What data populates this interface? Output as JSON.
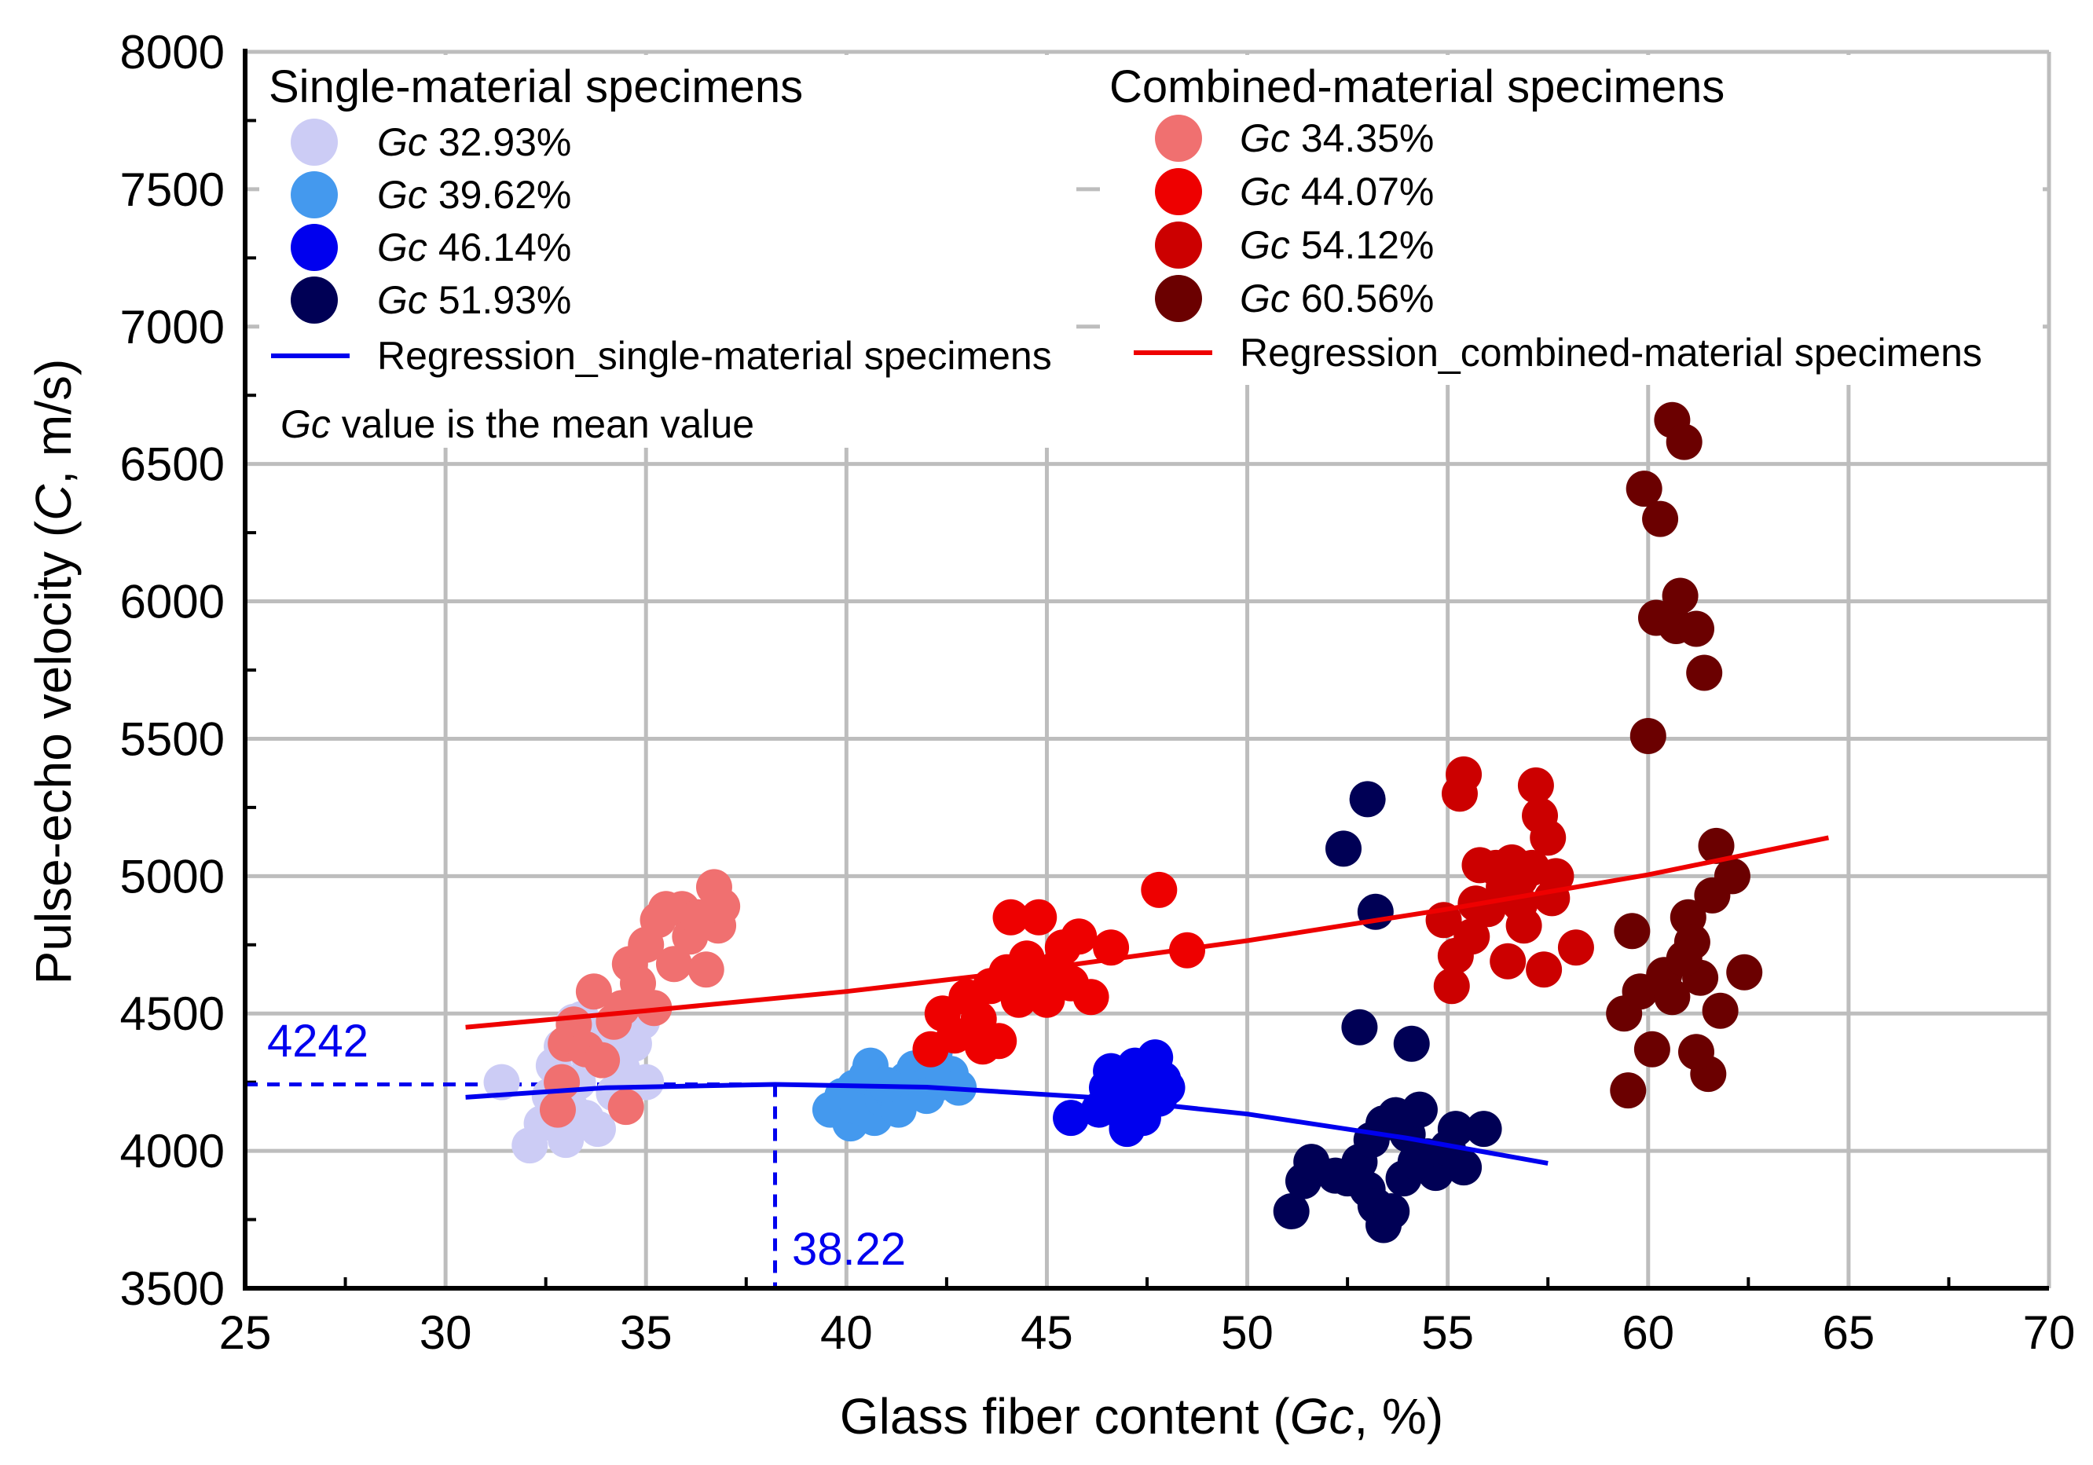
{
  "chart_data": {
    "type": "scatter",
    "title": "",
    "xlabel_prefix": "Glass fiber content (",
    "xlabel_var": "Gc",
    "xlabel_suffix": ", %)",
    "ylabel_prefix": "Pulse-echo velocity (",
    "ylabel_var": "C",
    "ylabel_suffix": ", m/s)",
    "xlim": [
      25,
      70
    ],
    "ylim": [
      3500,
      8000
    ],
    "xticks": [
      25,
      30,
      35,
      40,
      45,
      50,
      55,
      60,
      65,
      70
    ],
    "yticks": [
      3500,
      4000,
      4500,
      5000,
      5500,
      6000,
      6500,
      7000,
      7500,
      8000
    ],
    "x_minor_step": 2.5,
    "y_minor_step": 250,
    "grid": true,
    "legend": {
      "single_heading": "Single-material specimens",
      "combined_heading": "Combined-material specimens",
      "var_label": "Gc",
      "single_regression_label": "Regression_single-material specimens",
      "combined_regression_label": "Regression_combined-material specimens",
      "note_var": "Gc",
      "note_text": " value is the mean value",
      "placement": "top"
    },
    "series": [
      {
        "name": "Gc 32.93%",
        "group": "single",
        "mean_label": "32.93%",
        "color": "#ccccf5",
        "points": [
          [
            31.4,
            4250
          ],
          [
            32.1,
            4020
          ],
          [
            32.4,
            4100
          ],
          [
            32.6,
            4200
          ],
          [
            32.7,
            4310
          ],
          [
            32.9,
            4380
          ],
          [
            33.0,
            4040
          ],
          [
            33.1,
            4160
          ],
          [
            33.2,
            4470
          ],
          [
            33.3,
            4250
          ],
          [
            33.5,
            4120
          ],
          [
            33.6,
            4330
          ],
          [
            33.8,
            4080
          ],
          [
            34.0,
            4420
          ],
          [
            34.2,
            4210
          ],
          [
            34.4,
            4300
          ],
          [
            34.7,
            4390
          ],
          [
            35.0,
            4250
          ],
          [
            34.9,
            4470
          ],
          [
            33.4,
            4480
          ]
        ]
      },
      {
        "name": "Gc 39.62%",
        "group": "single",
        "mean_label": "39.62%",
        "color": "#4499ee",
        "points": [
          [
            39.6,
            4150
          ],
          [
            39.9,
            4200
          ],
          [
            40.1,
            4100
          ],
          [
            40.2,
            4230
          ],
          [
            40.3,
            4160
          ],
          [
            40.5,
            4270
          ],
          [
            40.6,
            4310
          ],
          [
            40.7,
            4120
          ],
          [
            40.9,
            4190
          ],
          [
            41.1,
            4220
          ],
          [
            41.3,
            4150
          ],
          [
            41.5,
            4260
          ],
          [
            41.7,
            4300
          ],
          [
            41.9,
            4230
          ],
          [
            42.0,
            4200
          ],
          [
            42.2,
            4360
          ],
          [
            42.4,
            4250
          ],
          [
            42.6,
            4280
          ],
          [
            42.8,
            4230
          ],
          [
            41.0,
            4240
          ]
        ]
      },
      {
        "name": "Gc 46.14%",
        "group": "single",
        "mean_label": "46.14%",
        "color": "#0000ee",
        "points": [
          [
            45.6,
            4120
          ],
          [
            46.3,
            4150
          ],
          [
            46.5,
            4230
          ],
          [
            46.6,
            4290
          ],
          [
            46.8,
            4200
          ],
          [
            46.9,
            4260
          ],
          [
            47.0,
            4100
          ],
          [
            47.1,
            4180
          ],
          [
            47.2,
            4310
          ],
          [
            47.3,
            4230
          ],
          [
            47.4,
            4150
          ],
          [
            47.5,
            4280
          ],
          [
            47.6,
            4210
          ],
          [
            47.7,
            4340
          ],
          [
            47.8,
            4190
          ],
          [
            47.9,
            4260
          ],
          [
            48.0,
            4230
          ],
          [
            47.0,
            4080
          ],
          [
            47.4,
            4120
          ]
        ]
      },
      {
        "name": "Gc 51.93%",
        "group": "single",
        "mean_label": "51.93%",
        "color": "#000055",
        "points": [
          [
            51.1,
            3780
          ],
          [
            51.4,
            3890
          ],
          [
            51.6,
            3960
          ],
          [
            52.4,
            5100
          ],
          [
            53.0,
            5280
          ],
          [
            53.2,
            4870
          ],
          [
            52.8,
            4450
          ],
          [
            54.1,
            4390
          ],
          [
            52.2,
            3910
          ],
          [
            52.5,
            3900
          ],
          [
            52.8,
            3960
          ],
          [
            53.0,
            3860
          ],
          [
            53.2,
            3800
          ],
          [
            53.4,
            3730
          ],
          [
            53.6,
            3780
          ],
          [
            53.1,
            4040
          ],
          [
            53.4,
            4100
          ],
          [
            53.7,
            4130
          ],
          [
            54.0,
            4060
          ],
          [
            54.3,
            4150
          ],
          [
            54.5,
            3980
          ],
          [
            54.7,
            3920
          ],
          [
            55.0,
            4010
          ],
          [
            55.2,
            4080
          ],
          [
            55.4,
            3940
          ],
          [
            55.9,
            4080
          ],
          [
            53.9,
            3900
          ],
          [
            54.2,
            3960
          ]
        ]
      },
      {
        "name": "Gc 34.35%",
        "group": "combined",
        "mean_label": "34.35%",
        "color": "#f07070",
        "points": [
          [
            32.8,
            4150
          ],
          [
            32.9,
            4250
          ],
          [
            33.0,
            4390
          ],
          [
            33.2,
            4460
          ],
          [
            33.5,
            4370
          ],
          [
            33.7,
            4580
          ],
          [
            33.9,
            4330
          ],
          [
            34.2,
            4470
          ],
          [
            34.4,
            4520
          ],
          [
            34.5,
            4160
          ],
          [
            34.6,
            4680
          ],
          [
            34.8,
            4610
          ],
          [
            35.0,
            4750
          ],
          [
            35.2,
            4520
          ],
          [
            35.3,
            4840
          ],
          [
            35.5,
            4880
          ],
          [
            35.7,
            4680
          ],
          [
            35.9,
            4880
          ],
          [
            36.1,
            4780
          ],
          [
            36.3,
            4850
          ],
          [
            36.5,
            4660
          ],
          [
            36.7,
            4960
          ],
          [
            36.8,
            4820
          ],
          [
            36.9,
            4890
          ]
        ]
      },
      {
        "name": "Gc 44.07%",
        "group": "combined",
        "mean_label": "44.07%",
        "color": "#ee0000",
        "points": [
          [
            42.1,
            4370
          ],
          [
            42.4,
            4500
          ],
          [
            42.7,
            4420
          ],
          [
            43.0,
            4560
          ],
          [
            43.3,
            4480
          ],
          [
            43.4,
            4380
          ],
          [
            43.6,
            4600
          ],
          [
            43.8,
            4400
          ],
          [
            44.0,
            4650
          ],
          [
            44.1,
            4850
          ],
          [
            44.3,
            4550
          ],
          [
            44.5,
            4700
          ],
          [
            44.6,
            4610
          ],
          [
            44.8,
            4850
          ],
          [
            45.0,
            4550
          ],
          [
            45.2,
            4660
          ],
          [
            45.4,
            4740
          ],
          [
            45.6,
            4610
          ],
          [
            45.8,
            4780
          ],
          [
            46.1,
            4560
          ],
          [
            46.6,
            4740
          ],
          [
            47.8,
            4950
          ],
          [
            48.5,
            4730
          ],
          [
            45.0,
            4620
          ]
        ]
      },
      {
        "name": "Gc 54.12%",
        "group": "combined",
        "mean_label": "54.12%",
        "color": "#cc0000",
        "points": [
          [
            54.9,
            4840
          ],
          [
            55.1,
            4600
          ],
          [
            55.2,
            4710
          ],
          [
            55.3,
            5300
          ],
          [
            55.4,
            5370
          ],
          [
            55.6,
            4780
          ],
          [
            55.7,
            4900
          ],
          [
            55.8,
            5040
          ],
          [
            56.0,
            4880
          ],
          [
            56.2,
            5030
          ],
          [
            56.4,
            4960
          ],
          [
            56.5,
            4690
          ],
          [
            56.6,
            5050
          ],
          [
            56.8,
            4990
          ],
          [
            56.9,
            4820
          ],
          [
            57.1,
            5030
          ],
          [
            57.2,
            5330
          ],
          [
            57.3,
            5220
          ],
          [
            57.4,
            4660
          ],
          [
            57.5,
            5140
          ],
          [
            57.6,
            4920
          ],
          [
            57.7,
            5000
          ],
          [
            58.2,
            4740
          ],
          [
            56.8,
            4900
          ]
        ]
      },
      {
        "name": "Gc 60.56%",
        "group": "combined",
        "mean_label": "60.56%",
        "color": "#6b0000",
        "points": [
          [
            59.4,
            4500
          ],
          [
            59.5,
            4220
          ],
          [
            59.6,
            4800
          ],
          [
            59.8,
            4580
          ],
          [
            59.9,
            6410
          ],
          [
            60.0,
            5510
          ],
          [
            60.1,
            4370
          ],
          [
            60.2,
            5940
          ],
          [
            60.3,
            6300
          ],
          [
            60.4,
            4640
          ],
          [
            60.6,
            4560
          ],
          [
            60.7,
            5910
          ],
          [
            60.8,
            6020
          ],
          [
            60.6,
            6660
          ],
          [
            60.9,
            6580
          ],
          [
            61.0,
            4850
          ],
          [
            61.1,
            4760
          ],
          [
            61.2,
            5900
          ],
          [
            61.3,
            4630
          ],
          [
            61.4,
            5740
          ],
          [
            61.5,
            4280
          ],
          [
            61.6,
            4930
          ],
          [
            61.7,
            5110
          ],
          [
            61.8,
            4510
          ],
          [
            62.1,
            5000
          ],
          [
            62.4,
            4650
          ],
          [
            61.2,
            4360
          ],
          [
            60.9,
            4700
          ]
        ]
      }
    ],
    "regressions": [
      {
        "name": "Regression_single-material specimens",
        "color": "#0000ee",
        "x": [
          30.5,
          34.0,
          38.22,
          42.0,
          46.0,
          50.0,
          54.0,
          57.5
        ],
        "y": [
          4195,
          4230,
          4242,
          4232,
          4196,
          4134,
          4046,
          3955
        ]
      },
      {
        "name": "Regression_combined-material specimens",
        "color": "#ee0000",
        "x": [
          30.5,
          35.0,
          40.0,
          45.0,
          50.0,
          55.0,
          60.0,
          64.5
        ],
        "y": [
          4450,
          4510,
          4580,
          4665,
          4765,
          4880,
          5005,
          5140
        ]
      }
    ],
    "annotations": {
      "peak_velocity_label": "4242",
      "peak_velocity": 4242,
      "peak_gc_label": "38.22",
      "peak_gc": 38.22,
      "color": "#0000ee"
    }
  }
}
